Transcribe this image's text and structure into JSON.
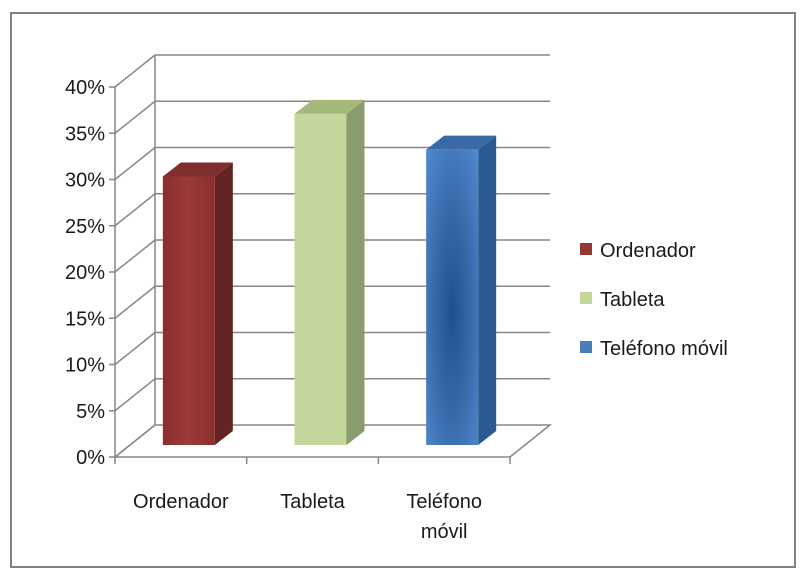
{
  "chart_data": {
    "type": "bar",
    "style": "3d-column",
    "categories": [
      "Ordenador",
      "Tableta",
      "Teléfono móvil"
    ],
    "category_tick_labels": [
      [
        "Ordenador"
      ],
      [
        "Tableta"
      ],
      [
        "Teléfono",
        "móvil"
      ]
    ],
    "values": [
      30,
      37,
      33
    ],
    "value_unit": "%",
    "ylim": [
      0,
      40
    ],
    "yticks": [
      "0%",
      "5%",
      "10%",
      "15%",
      "20%",
      "25%",
      "30%",
      "35%",
      "40%"
    ],
    "grid": true,
    "legend_position": "right",
    "legend": [
      "Ordenador",
      "Tableta",
      "Teléfono móvil"
    ],
    "title": "",
    "xlabel": "",
    "ylabel": "",
    "colors": {
      "Ordenador": "#953735",
      "Tableta": "#c3d69b",
      "Teléfono móvil": "#4a7ebb"
    }
  }
}
